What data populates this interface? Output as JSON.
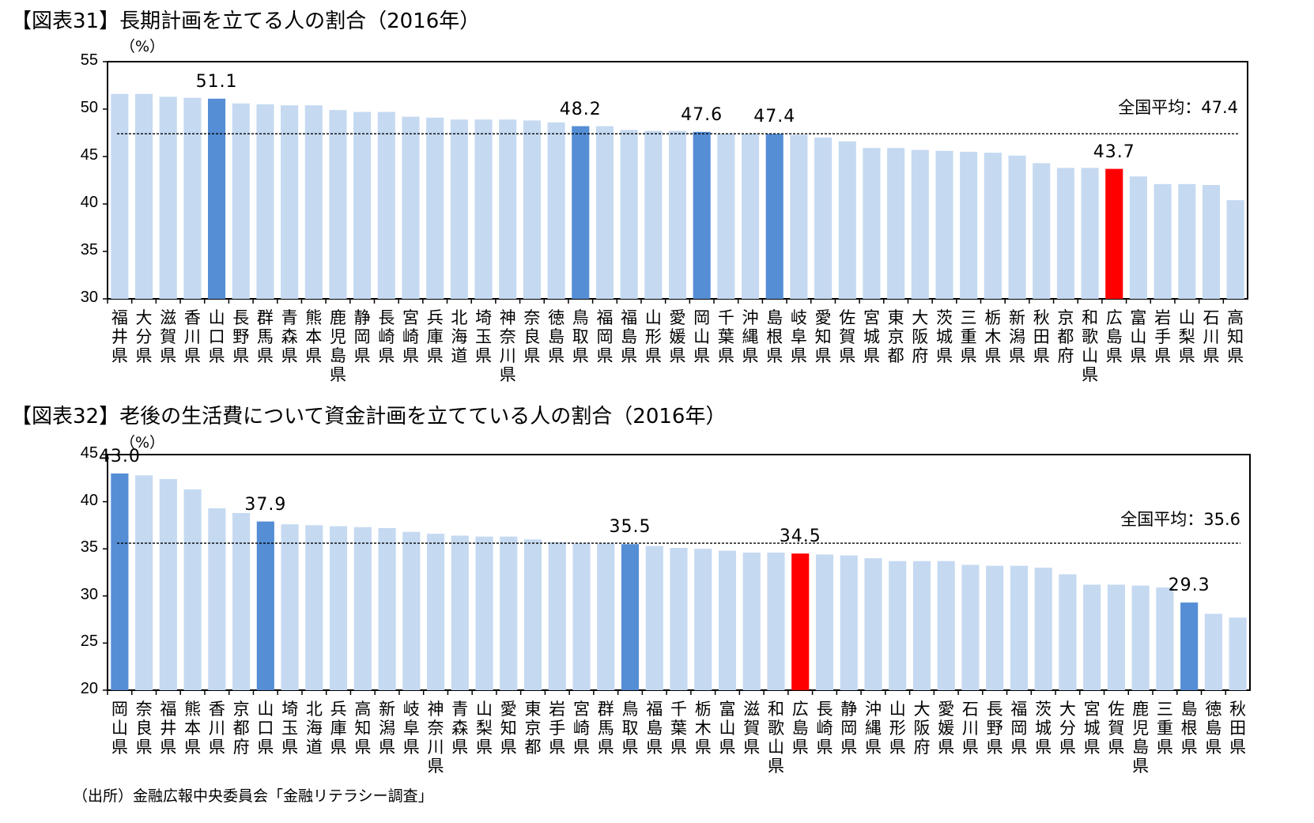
{
  "chart_data": [
    {
      "type": "bar",
      "title": "【図表31】長期計画を立てる人の割合（2016年）",
      "ylabel": "（%）",
      "ylim": [
        30,
        55
      ],
      "yticks": [
        30,
        35,
        40,
        45,
        50,
        55
      ],
      "average": 47.4,
      "average_label": "全国平均：47.4",
      "categories": [
        "福井県",
        "大分県",
        "滋賀県",
        "香川県",
        "山口県",
        "長野県",
        "群馬県",
        "青森県",
        "熊本県",
        "鹿児島県",
        "静岡県",
        "長崎県",
        "宮崎県",
        "兵庫県",
        "北海道",
        "埼玉県",
        "神奈川県",
        "奈良県",
        "徳島県",
        "鳥取県",
        "福岡県",
        "福島県",
        "山形県",
        "愛媛県",
        "岡山県",
        "千葉県",
        "沖縄県",
        "島根県",
        "岐阜県",
        "愛知県",
        "佐賀県",
        "宮城県",
        "東京都",
        "大阪府",
        "茨城県",
        "三重県",
        "栃木県",
        "新潟県",
        "秋田県",
        "京都府",
        "和歌山県",
        "広島県",
        "富山県",
        "岩手県",
        "山梨県",
        "石川県",
        "高知県"
      ],
      "values": [
        51.6,
        51.6,
        51.3,
        51.2,
        51.1,
        50.6,
        50.5,
        50.4,
        50.4,
        49.9,
        49.7,
        49.7,
        49.2,
        49.1,
        48.9,
        48.9,
        48.9,
        48.8,
        48.6,
        48.2,
        48.2,
        47.8,
        47.7,
        47.7,
        47.6,
        47.4,
        47.4,
        47.4,
        47.3,
        47.0,
        46.6,
        45.9,
        45.9,
        45.7,
        45.6,
        45.5,
        45.4,
        45.1,
        44.3,
        43.8,
        43.8,
        43.7,
        42.9,
        42.1,
        42.1,
        42.0,
        40.4
      ],
      "highlight": {
        "山口県": "dark",
        "鳥取県": "dark",
        "岡山県": "dark",
        "島根県": "dark",
        "広島県": "red"
      },
      "data_labels": {
        "山口県": "51.1",
        "鳥取県": "48.2",
        "岡山県": "47.6",
        "島根県": "47.4",
        "広島県": "43.7"
      }
    },
    {
      "type": "bar",
      "title": "【図表32】老後の生活費について資金計画を立てている人の割合（2016年）",
      "ylabel": "（%）",
      "ylim": [
        20,
        45
      ],
      "yticks": [
        20,
        25,
        30,
        35,
        40,
        45
      ],
      "average": 35.6,
      "average_label": "全国平均：35.6",
      "categories": [
        "岡山県",
        "奈良県",
        "福井県",
        "熊本県",
        "香川県",
        "京都府",
        "山口県",
        "埼玉県",
        "北海道",
        "兵庫県",
        "高知県",
        "新潟県",
        "岐阜県",
        "神奈川県",
        "青森県",
        "山梨県",
        "愛知県",
        "東京都",
        "岩手県",
        "宮崎県",
        "群馬県",
        "鳥取県",
        "福島県",
        "千葉県",
        "栃木県",
        "富山県",
        "滋賀県",
        "和歌山県",
        "広島県",
        "長崎県",
        "静岡県",
        "沖縄県",
        "山形県",
        "大阪府",
        "愛媛県",
        "石川県",
        "長野県",
        "福岡県",
        "茨城県",
        "大分県",
        "宮城県",
        "佐賀県",
        "鹿児島県",
        "三重県",
        "島根県",
        "徳島県",
        "秋田県"
      ],
      "values": [
        43.0,
        42.8,
        42.4,
        41.3,
        39.3,
        38.8,
        37.9,
        37.6,
        37.5,
        37.4,
        37.3,
        37.2,
        36.8,
        36.6,
        36.4,
        36.3,
        36.3,
        36.0,
        35.7,
        35.6,
        35.6,
        35.5,
        35.3,
        35.1,
        35.0,
        34.8,
        34.6,
        34.6,
        34.5,
        34.4,
        34.3,
        34.0,
        33.7,
        33.7,
        33.7,
        33.3,
        33.2,
        33.2,
        33.0,
        32.3,
        31.2,
        31.2,
        31.1,
        30.9,
        29.3,
        28.1,
        27.7
      ],
      "highlight": {
        "岡山県": "dark",
        "山口県": "dark",
        "鳥取県": "dark",
        "島根県": "dark",
        "広島県": "red"
      },
      "data_labels": {
        "岡山県": "43.0",
        "山口県": "37.9",
        "鳥取県": "35.5",
        "広島県": "34.5",
        "島根県": "29.3"
      }
    }
  ],
  "colors": {
    "light": "#c5d9f1",
    "dark": "#558ed5",
    "red": "#ff0000",
    "axis": "#000000"
  },
  "source": "（出所）金融広報中央委員会「金融リテラシー調査」"
}
